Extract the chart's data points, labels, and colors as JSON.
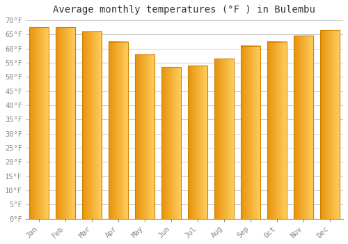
{
  "title": "Average monthly temperatures (°F ) in Bulembu",
  "months": [
    "Jan",
    "Feb",
    "Mar",
    "Apr",
    "May",
    "Jun",
    "Jul",
    "Aug",
    "Sep",
    "Oct",
    "Nov",
    "Dec"
  ],
  "values": [
    67.5,
    67.5,
    66.0,
    62.5,
    58.0,
    53.5,
    54.0,
    56.5,
    61.0,
    62.5,
    64.5,
    66.5
  ],
  "bar_color_left": "#E8920A",
  "bar_color_mid": "#FFC020",
  "bar_color_right": "#FFD060",
  "bar_edge_color": "#CC8000",
  "ylim": [
    0,
    70
  ],
  "yticks": [
    0,
    5,
    10,
    15,
    20,
    25,
    30,
    35,
    40,
    45,
    50,
    55,
    60,
    65,
    70
  ],
  "ytick_labels": [
    "0°F",
    "5°F",
    "10°F",
    "15°F",
    "20°F",
    "25°F",
    "30°F",
    "35°F",
    "40°F",
    "45°F",
    "50°F",
    "55°F",
    "60°F",
    "65°F",
    "70°F"
  ],
  "background_color": "#FFFFFF",
  "grid_color": "#CCCCCC",
  "title_fontsize": 10,
  "tick_fontsize": 7.5,
  "title_font": "monospace",
  "tick_font": "monospace",
  "tick_color": "#888888",
  "bar_width": 0.75
}
